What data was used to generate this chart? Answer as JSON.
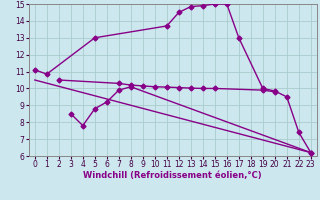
{
  "bg_color": "#cce8ee",
  "grid_color": "#aacccc",
  "line_color": "#880088",
  "line_width": 1.0,
  "marker": "D",
  "marker_size": 2.5,
  "xlim": [
    -0.5,
    23.5
  ],
  "ylim": [
    6,
    15
  ],
  "yticks": [
    6,
    7,
    8,
    9,
    10,
    11,
    12,
    13,
    14,
    15
  ],
  "xticks": [
    0,
    1,
    2,
    3,
    4,
    5,
    6,
    7,
    8,
    9,
    10,
    11,
    12,
    13,
    14,
    15,
    16,
    17,
    18,
    19,
    20,
    21,
    22,
    23
  ],
  "xlabel": "Windchill (Refroidissement éolien,°C)",
  "xlabel_fontsize": 6.0,
  "tick_fontsize": 5.5,
  "series": [
    {
      "x": [
        0,
        1,
        5,
        11,
        12,
        13,
        14,
        15,
        16,
        17,
        19,
        20,
        21,
        22,
        23
      ],
      "y": [
        11.1,
        10.85,
        13.0,
        13.7,
        14.5,
        14.85,
        14.9,
        15.0,
        15.0,
        13.0,
        10.0,
        9.85,
        9.5,
        7.4,
        6.2
      ]
    },
    {
      "x": [
        2,
        7,
        8,
        9,
        10,
        11,
        12,
        13,
        14,
        15,
        19,
        20
      ],
      "y": [
        10.5,
        10.3,
        10.2,
        10.15,
        10.1,
        10.08,
        10.05,
        10.02,
        10.0,
        10.0,
        9.9,
        9.8
      ]
    },
    {
      "x": [
        3,
        4,
        5,
        6,
        7,
        8,
        23
      ],
      "y": [
        8.5,
        7.8,
        8.8,
        9.2,
        9.9,
        10.1,
        6.2
      ]
    },
    {
      "x": [
        0,
        23
      ],
      "y": [
        10.5,
        6.2
      ]
    }
  ]
}
